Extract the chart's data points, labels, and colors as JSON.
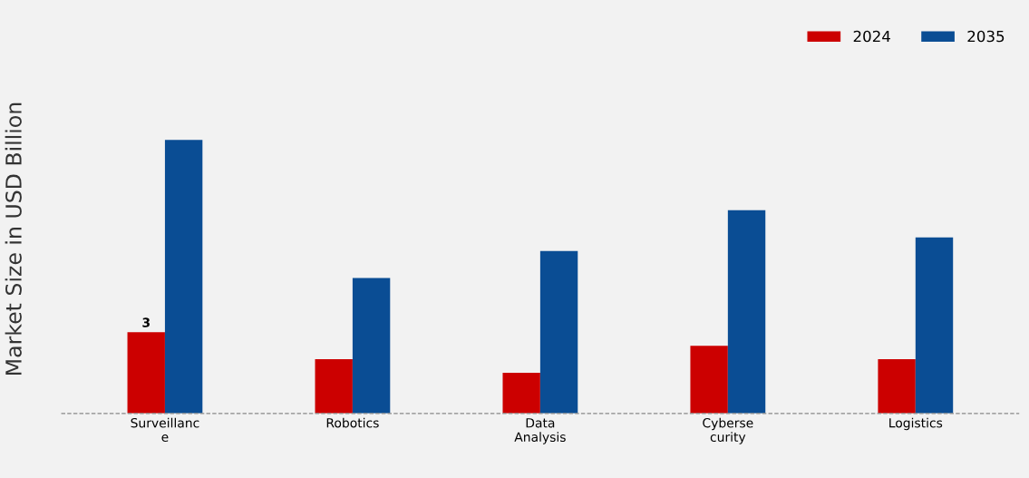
{
  "chart_data": {
    "type": "bar",
    "ylabel": "Market Size in USD Billion",
    "tick_labels": "x",
    "legend": "top right",
    "grid": false,
    "categories": [
      "Surveillanc\ne",
      "Robotics",
      "Data\nAnalysis",
      "Cyberse\ncurity",
      "Logistics"
    ],
    "series": [
      {
        "name": "2024",
        "color": "#cc0000",
        "values": [
          3,
          2.0,
          1.5,
          2.5,
          2.0
        ],
        "value_labels": [
          "3",
          null,
          null,
          null,
          null
        ]
      },
      {
        "name": "2035",
        "color": "#0a4d94",
        "values": [
          10.1,
          5.0,
          6.0,
          7.5,
          6.5
        ]
      }
    ]
  }
}
